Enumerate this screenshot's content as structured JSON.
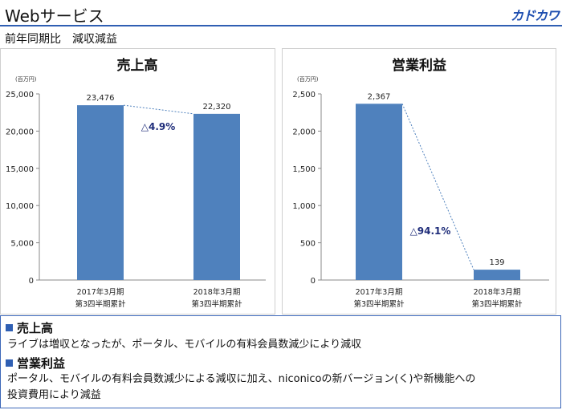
{
  "header": {
    "title": "Webサービス",
    "brand": "カドカワ",
    "subtitle": "前年同期比　減収減益"
  },
  "colors": {
    "bar": "#4f81bd",
    "accent": "#2f5fb3",
    "change_label": "#1f2d7a"
  },
  "chart_data": [
    {
      "type": "bar",
      "title": "売上高",
      "unit": "(百万円)",
      "categories": [
        "2017年3月期\n第3四半期累計",
        "2018年3月期\n第3四半期累計"
      ],
      "values": [
        23476,
        22320
      ],
      "value_labels": [
        "23,476",
        "22,320"
      ],
      "ylim": [
        0,
        25000
      ],
      "yticks": [
        0,
        5000,
        10000,
        15000,
        20000,
        25000
      ],
      "ytick_labels": [
        "0",
        "5,000",
        "10,000",
        "15,000",
        "20,000",
        "25,000"
      ],
      "change_label": "△4.9%"
    },
    {
      "type": "bar",
      "title": "営業利益",
      "unit": "(百万円)",
      "categories": [
        "2017年3月期\n第3四半期累計",
        "2018年3月期\n第3四半期累計"
      ],
      "values": [
        2367,
        139
      ],
      "value_labels": [
        "2,367",
        "139"
      ],
      "ylim": [
        0,
        2500
      ],
      "yticks": [
        0,
        500,
        1000,
        1500,
        2000,
        2500
      ],
      "ytick_labels": [
        "0",
        "500",
        "1,000",
        "1,500",
        "2,000",
        "2,500"
      ],
      "change_label": "△94.1%"
    }
  ],
  "notes": {
    "sales_heading": "売上高",
    "sales_text": "ライブは増収となったが、ポータル、モバイルの有料会員数減少により減収",
    "profit_heading": "営業利益",
    "profit_text_1": "ポータル、モバイルの有料会員数減少による減収に加え、niconicoの新バージョン(く)や新機能への",
    "profit_text_2": "投資費用により減益"
  }
}
